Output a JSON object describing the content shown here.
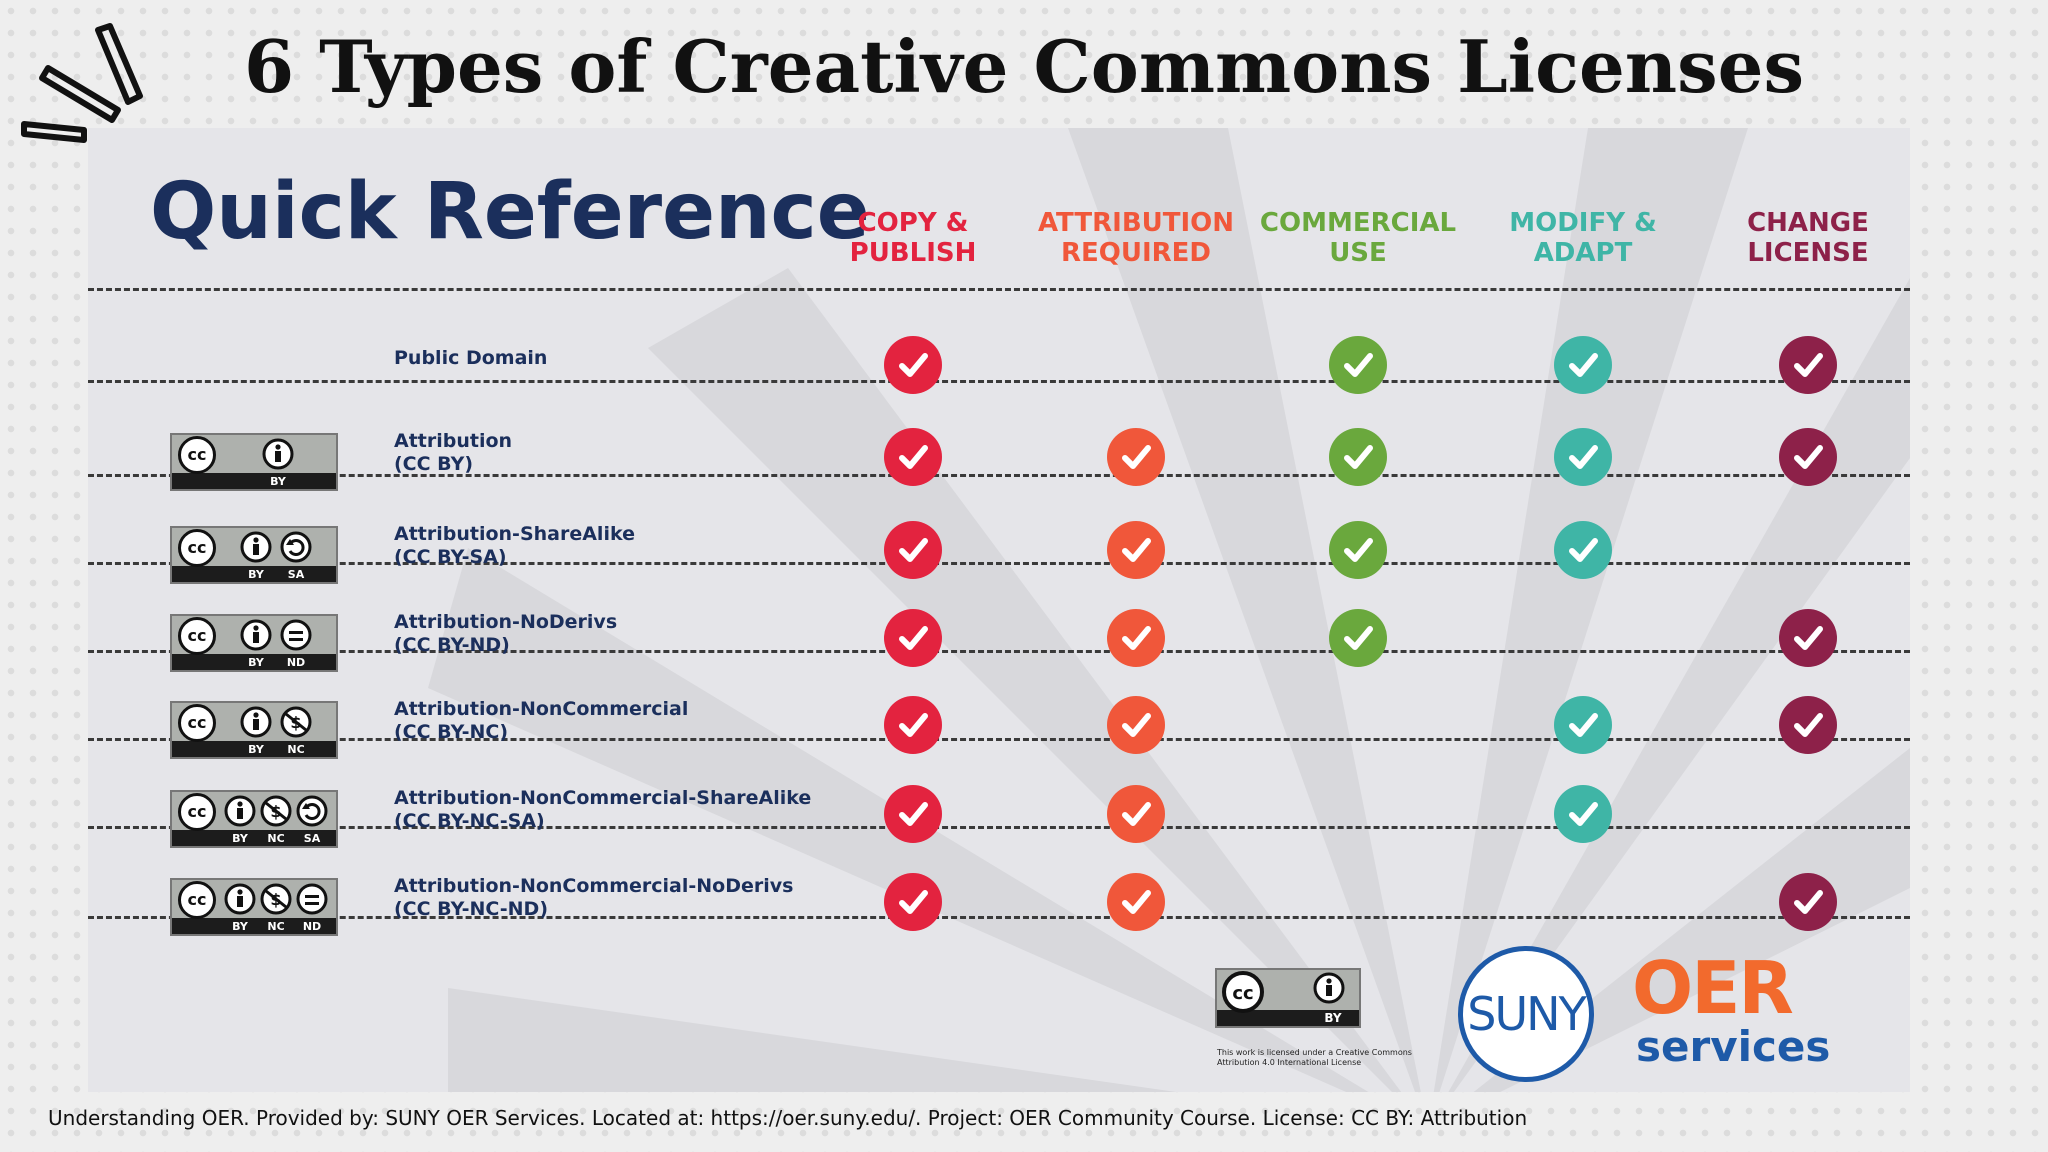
{
  "page_title": "6 Types of Creative Commons Licenses",
  "panel_title": "Quick Reference",
  "colors": {
    "navy": "#1b2f5c",
    "red": "#e3233f",
    "orange": "#f0573a",
    "green": "#6aa83d",
    "teal": "#3fb5a6",
    "maroon": "#8d2149"
  },
  "columns": [
    {
      "line1": "COPY &",
      "line2": "PUBLISH",
      "color": "#e3233f"
    },
    {
      "line1": "ATTRIBUTION",
      "line2": "REQUIRED",
      "color": "#f0573a"
    },
    {
      "line1": "COMMERCIAL",
      "line2": "USE",
      "color": "#6aa83d"
    },
    {
      "line1": "MODIFY &",
      "line2": "ADAPT",
      "color": "#3fb5a6"
    },
    {
      "line1": "CHANGE",
      "line2": "LICENSE",
      "color": "#8d2149"
    }
  ],
  "rows": [
    {
      "name": "Public Domain",
      "code": "",
      "badge": [],
      "checks": [
        true,
        false,
        true,
        true,
        true
      ]
    },
    {
      "name": "Attribution",
      "code": "(CC BY)",
      "badge": [
        "BY"
      ],
      "checks": [
        true,
        true,
        true,
        true,
        true
      ]
    },
    {
      "name": "Attribution-ShareAlike",
      "code": "(CC BY-SA)",
      "badge": [
        "BY",
        "SA"
      ],
      "checks": [
        true,
        true,
        true,
        true,
        false
      ]
    },
    {
      "name": "Attribution-NoDerivs",
      "code": "(CC BY-ND)",
      "badge": [
        "BY",
        "ND"
      ],
      "checks": [
        true,
        true,
        true,
        false,
        true
      ]
    },
    {
      "name": "Attribution-NonCommercial",
      "code": "(CC BY-NC)",
      "badge": [
        "BY",
        "NC"
      ],
      "checks": [
        true,
        true,
        false,
        true,
        true
      ]
    },
    {
      "name": "Attribution-NonCommercial-ShareAlike",
      "code": "(CC BY-NC-SA)",
      "badge": [
        "BY",
        "NC",
        "SA"
      ],
      "checks": [
        true,
        true,
        false,
        true,
        false
      ]
    },
    {
      "name": "Attribution-NonCommercial-NoDerivs",
      "code": "(CC BY-NC-ND)",
      "badge": [
        "BY",
        "NC",
        "ND"
      ],
      "checks": [
        true,
        true,
        false,
        false,
        true
      ]
    }
  ],
  "badge_text": {
    "cc": "cc",
    "BY": "BY",
    "SA": "SA",
    "ND": "ND",
    "NC": "NC"
  },
  "footer": {
    "cc_badge_abbr": "BY",
    "cc_note": "This work is licensed under a Creative Commons Attribution 4.0 International License",
    "suny": "SUNY",
    "oer": "OER",
    "services": "services"
  },
  "credits": "Understanding OER. Provided by: SUNY OER Services. Located at: https://oer.suny.edu/. Project: OER Community Course. License: CC BY: Attribution"
}
